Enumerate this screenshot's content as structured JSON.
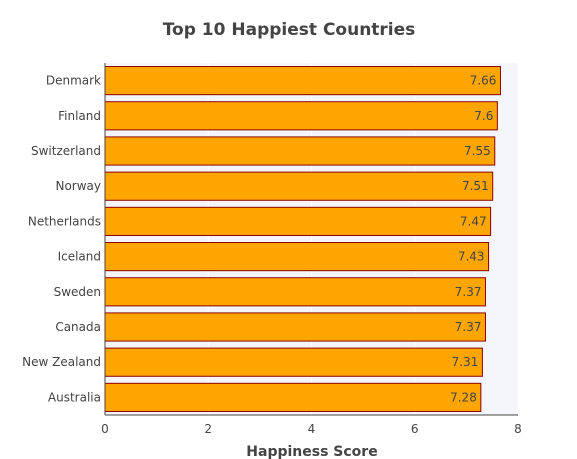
{
  "chart_data": {
    "type": "bar",
    "orientation": "horizontal",
    "title": "Top 10 Happiest Countries",
    "xlabel": "Happiness Score",
    "ylabel": "",
    "xlim": [
      0,
      8
    ],
    "xticks": [
      "0",
      "2",
      "4",
      "6",
      "8"
    ],
    "grid": true,
    "categories": [
      "Denmark",
      "Finland",
      "Switzerland",
      "Norway",
      "Netherlands",
      "Iceland",
      "Sweden",
      "Canada",
      "New Zealand",
      "Australia"
    ],
    "values": [
      7.66,
      7.6,
      7.55,
      7.51,
      7.47,
      7.43,
      7.37,
      7.37,
      7.31,
      7.28
    ],
    "bar_color": "#FFA500",
    "bar_edge_color": "#8B0000",
    "plot_background": "#F5F6FC",
    "gridline_color": "#FFFFFF"
  }
}
